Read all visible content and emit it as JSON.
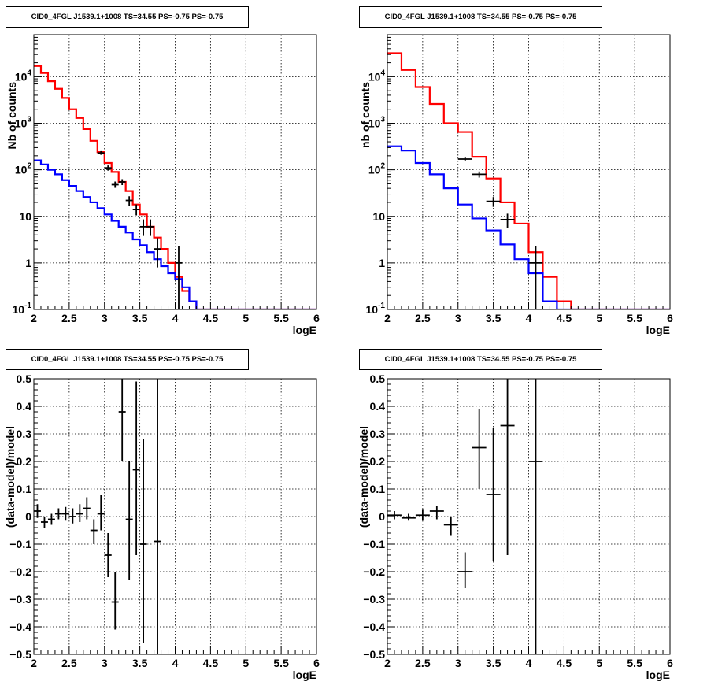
{
  "chart_data": [
    {
      "type": "line",
      "title": "CID0_4FGL J1539.1+1008 TS=34.55 PS=-0.75 PS=-0.75",
      "xlabel": "logE",
      "ylabel": "Nb of counts",
      "xlim": [
        2,
        6
      ],
      "ylim": [
        0.1,
        80000
      ],
      "ylog": true,
      "grid": true,
      "x_ticks": [
        "2",
        "2.5",
        "3",
        "3.5",
        "4",
        "4.5",
        "5",
        "5.5",
        "6"
      ],
      "y_ticks": [
        {
          "v": 0.1,
          "label": "10",
          "sup": "-1"
        },
        {
          "v": 1,
          "label": "1",
          "sup": ""
        },
        {
          "v": 10,
          "label": "10",
          "sup": ""
        },
        {
          "v": 100,
          "label": "10",
          "sup": "2"
        },
        {
          "v": 1000,
          "label": "10",
          "sup": "3"
        },
        {
          "v": 10000,
          "label": "10",
          "sup": "4"
        }
      ],
      "bin_edges": [
        2.0,
        2.1,
        2.2,
        2.3,
        2.4,
        2.5,
        2.6,
        2.7,
        2.8,
        2.9,
        3.0,
        3.1,
        3.2,
        3.3,
        3.4,
        3.5,
        3.6,
        3.7,
        3.8,
        3.9,
        4.0,
        4.1,
        4.2,
        4.3,
        4.4,
        4.5,
        4.6,
        4.7,
        4.8,
        4.9,
        5.0,
        5.1,
        5.2,
        5.3,
        5.4,
        5.5,
        5.6,
        5.7,
        5.8,
        5.9,
        6.0
      ],
      "series": [
        {
          "color": "#ff0000",
          "values": [
            17000,
            12000,
            8000,
            5500,
            3500,
            2000,
            1300,
            750,
            420,
            240,
            140,
            90,
            55,
            35,
            18,
            11,
            6,
            3.5,
            2,
            1,
            0.5,
            0.25,
            0.15,
            0.1,
            0.08,
            0.08,
            0.08,
            0.08,
            0.08,
            0.08,
            0.08,
            0.08,
            0.08,
            0.08,
            0.08,
            0.08,
            0.08,
            0.08,
            0.08,
            0.08
          ]
        },
        {
          "color": "#0000ff",
          "values": [
            160,
            130,
            100,
            80,
            60,
            45,
            35,
            26,
            20,
            15,
            11,
            8,
            6,
            4.5,
            3.2,
            2.4,
            1.7,
            1.2,
            0.85,
            0.6,
            0.45,
            0.3,
            0.15,
            0.1,
            0.1,
            0.1,
            0.1,
            0.1,
            0.1,
            0.1,
            0.1,
            0.1,
            0.1,
            0.1,
            0.1,
            0.1,
            0.1,
            0.1,
            0.1,
            0.1
          ]
        }
      ],
      "points": [
        {
          "x": 2.95,
          "y": 230,
          "xerr": 0.05,
          "ylo": 210,
          "yhi": 252
        },
        {
          "x": 3.05,
          "y": 110,
          "xerr": 0.05,
          "ylo": 96,
          "yhi": 124
        },
        {
          "x": 3.15,
          "y": 48,
          "xerr": 0.05,
          "ylo": 41,
          "yhi": 56
        },
        {
          "x": 3.25,
          "y": 55,
          "xerr": 0.05,
          "ylo": 47,
          "yhi": 63
        },
        {
          "x": 3.35,
          "y": 22,
          "xerr": 0.05,
          "ylo": 17,
          "yhi": 27
        },
        {
          "x": 3.45,
          "y": 14,
          "xerr": 0.05,
          "ylo": 10.5,
          "yhi": 18
        },
        {
          "x": 3.55,
          "y": 6,
          "xerr": 0.05,
          "ylo": 3.8,
          "yhi": 8.6
        },
        {
          "x": 3.65,
          "y": 6,
          "xerr": 0.05,
          "ylo": 3.8,
          "yhi": 8.6
        },
        {
          "x": 3.75,
          "y": 2,
          "xerr": 0.05,
          "ylo": 0.8,
          "yhi": 3.4
        },
        {
          "x": 4.05,
          "y": 1,
          "xerr": 0.05,
          "ylo": 0.08,
          "yhi": 2.3
        }
      ]
    },
    {
      "type": "line",
      "title": "CID0_4FGL J1539.1+1008 TS=34.55 PS=-0.75 PS=-0.75",
      "xlabel": "logE",
      "ylabel": "nb of counts",
      "xlim": [
        2,
        6
      ],
      "ylim": [
        0.1,
        80000
      ],
      "ylog": true,
      "grid": true,
      "x_ticks": [
        "2",
        "2.5",
        "3",
        "3.5",
        "4",
        "4.5",
        "5",
        "5.5",
        "6"
      ],
      "y_ticks": [
        {
          "v": 0.1,
          "label": "10",
          "sup": "-1"
        },
        {
          "v": 1,
          "label": "1",
          "sup": ""
        },
        {
          "v": 10,
          "label": "10",
          "sup": ""
        },
        {
          "v": 100,
          "label": "10",
          "sup": "2"
        },
        {
          "v": 1000,
          "label": "10",
          "sup": "3"
        },
        {
          "v": 10000,
          "label": "10",
          "sup": "4"
        }
      ],
      "bin_edges": [
        2.0,
        2.2,
        2.4,
        2.6,
        2.8,
        3.0,
        3.2,
        3.4,
        3.6,
        3.8,
        4.0,
        4.2,
        4.4,
        4.6,
        4.8,
        5.0,
        5.2,
        5.4,
        5.6,
        5.8,
        6.0
      ],
      "series": [
        {
          "color": "#ff0000",
          "values": [
            32000,
            14000,
            6000,
            2600,
            1000,
            650,
            190,
            65,
            20,
            7,
            1.7,
            0.5,
            0.15,
            0.08,
            0.08,
            0.08,
            0.08,
            0.08,
            0.08,
            0.08
          ]
        },
        {
          "color": "#0000ff",
          "values": [
            320,
            260,
            140,
            80,
            40,
            18,
            9,
            5,
            2.5,
            1.2,
            0.6,
            0.15,
            0.1,
            0.1,
            0.1,
            0.1,
            0.1,
            0.1,
            0.1,
            0.1
          ]
        }
      ],
      "points": [
        {
          "x": 3.1,
          "y": 170,
          "xerr": 0.1,
          "ylo": 155,
          "yhi": 185
        },
        {
          "x": 3.3,
          "y": 80,
          "xerr": 0.1,
          "ylo": 68,
          "yhi": 92
        },
        {
          "x": 3.5,
          "y": 21,
          "xerr": 0.1,
          "ylo": 16,
          "yhi": 26
        },
        {
          "x": 3.7,
          "y": 8.5,
          "xerr": 0.1,
          "ylo": 5.6,
          "yhi": 11.4
        },
        {
          "x": 4.1,
          "y": 1,
          "xerr": 0.1,
          "ylo": 0.08,
          "yhi": 2.3
        }
      ]
    },
    {
      "type": "scatter",
      "title": "CID0_4FGL J1539.1+1008 TS=34.55 PS=-0.75 PS=-0.75",
      "xlabel": "logE",
      "ylabel": "(data-model)/model",
      "xlim": [
        2,
        6
      ],
      "ylim": [
        -0.5,
        0.5
      ],
      "ylog": false,
      "grid": true,
      "x_ticks": [
        "2",
        "2.5",
        "3",
        "3.5",
        "4",
        "4.5",
        "5",
        "5.5",
        "6"
      ],
      "y_ticks": [
        {
          "v": -0.5,
          "label": "−0.5"
        },
        {
          "v": -0.4,
          "label": "−0.4"
        },
        {
          "v": -0.3,
          "label": "−0.3"
        },
        {
          "v": -0.2,
          "label": "−0.2"
        },
        {
          "v": -0.1,
          "label": "−0.1"
        },
        {
          "v": 0,
          "label": "0"
        },
        {
          "v": 0.1,
          "label": "0.1"
        },
        {
          "v": 0.2,
          "label": "0.2"
        },
        {
          "v": 0.3,
          "label": "0.3"
        },
        {
          "v": 0.4,
          "label": "0.4"
        },
        {
          "v": 0.5,
          "label": "0.5"
        }
      ],
      "points": [
        {
          "x": 2.05,
          "y": 0.02,
          "xerr": 0.05,
          "ylo": -0.005,
          "yhi": 0.045
        },
        {
          "x": 2.15,
          "y": -0.02,
          "xerr": 0.05,
          "ylo": -0.04,
          "yhi": 0.0
        },
        {
          "x": 2.25,
          "y": -0.01,
          "xerr": 0.05,
          "ylo": -0.03,
          "yhi": 0.01
        },
        {
          "x": 2.35,
          "y": 0.01,
          "xerr": 0.05,
          "ylo": -0.01,
          "yhi": 0.03
        },
        {
          "x": 2.45,
          "y": 0.01,
          "xerr": 0.05,
          "ylo": -0.015,
          "yhi": 0.035
        },
        {
          "x": 2.55,
          "y": 0.0,
          "xerr": 0.05,
          "ylo": -0.025,
          "yhi": 0.03
        },
        {
          "x": 2.65,
          "y": 0.01,
          "xerr": 0.05,
          "ylo": -0.02,
          "yhi": 0.045
        },
        {
          "x": 2.75,
          "y": 0.03,
          "xerr": 0.05,
          "ylo": -0.01,
          "yhi": 0.07
        },
        {
          "x": 2.85,
          "y": -0.05,
          "xerr": 0.05,
          "ylo": -0.1,
          "yhi": -0.01
        },
        {
          "x": 2.95,
          "y": 0.01,
          "xerr": 0.05,
          "ylo": -0.05,
          "yhi": 0.08
        },
        {
          "x": 3.05,
          "y": -0.14,
          "xerr": 0.05,
          "ylo": -0.22,
          "yhi": -0.06
        },
        {
          "x": 3.15,
          "y": -0.31,
          "xerr": 0.05,
          "ylo": -0.41,
          "yhi": -0.2
        },
        {
          "x": 3.25,
          "y": 0.38,
          "xerr": 0.05,
          "ylo": 0.2,
          "yhi": 0.5
        },
        {
          "x": 3.35,
          "y": -0.01,
          "xerr": 0.05,
          "ylo": -0.23,
          "yhi": 0.2
        },
        {
          "x": 3.45,
          "y": 0.17,
          "xerr": 0.05,
          "ylo": -0.14,
          "yhi": 0.49
        },
        {
          "x": 3.55,
          "y": -0.1,
          "xerr": 0.05,
          "ylo": -0.46,
          "yhi": 0.28
        },
        {
          "x": 3.75,
          "y": -0.09,
          "xerr": 0.05,
          "ylo": -0.5,
          "yhi": 0.5
        }
      ]
    },
    {
      "type": "scatter",
      "title": "CID0_4FGL J1539.1+1008 TS=34.55 PS=-0.75 PS=-0.75",
      "xlabel": "logE",
      "ylabel": "(data-model)/model",
      "xlim": [
        2,
        6
      ],
      "ylim": [
        -0.5,
        0.5
      ],
      "ylog": false,
      "grid": true,
      "x_ticks": [
        "2",
        "2.5",
        "3",
        "3.5",
        "4",
        "4.5",
        "5",
        "5.5",
        "6"
      ],
      "y_ticks": [
        {
          "v": -0.5,
          "label": "−0.5"
        },
        {
          "v": -0.4,
          "label": "−0.4"
        },
        {
          "v": -0.3,
          "label": "−0.3"
        },
        {
          "v": -0.2,
          "label": "−0.2"
        },
        {
          "v": -0.1,
          "label": "−0.1"
        },
        {
          "v": 0,
          "label": "0"
        },
        {
          "v": 0.1,
          "label": "0.1"
        },
        {
          "v": 0.2,
          "label": "0.2"
        },
        {
          "v": 0.3,
          "label": "0.3"
        },
        {
          "v": 0.4,
          "label": "0.4"
        },
        {
          "v": 0.5,
          "label": "0.5"
        }
      ],
      "points": [
        {
          "x": 2.1,
          "y": 0.005,
          "xerr": 0.1,
          "ylo": -0.01,
          "yhi": 0.02
        },
        {
          "x": 2.3,
          "y": -0.005,
          "xerr": 0.1,
          "ylo": -0.015,
          "yhi": 0.01
        },
        {
          "x": 2.5,
          "y": 0.005,
          "xerr": 0.1,
          "ylo": -0.015,
          "yhi": 0.025
        },
        {
          "x": 2.7,
          "y": 0.02,
          "xerr": 0.1,
          "ylo": -0.01,
          "yhi": 0.04
        },
        {
          "x": 2.9,
          "y": -0.03,
          "xerr": 0.1,
          "ylo": -0.07,
          "yhi": 0.0
        },
        {
          "x": 3.1,
          "y": -0.2,
          "xerr": 0.1,
          "ylo": -0.26,
          "yhi": -0.13
        },
        {
          "x": 3.3,
          "y": 0.25,
          "xerr": 0.1,
          "ylo": 0.1,
          "yhi": 0.39
        },
        {
          "x": 3.5,
          "y": 0.08,
          "xerr": 0.1,
          "ylo": -0.16,
          "yhi": 0.32
        },
        {
          "x": 3.7,
          "y": 0.33,
          "xerr": 0.1,
          "ylo": -0.14,
          "yhi": 0.5
        },
        {
          "x": 4.1,
          "y": 0.2,
          "xerr": 0.1,
          "ylo": -0.5,
          "yhi": 0.5
        }
      ]
    }
  ]
}
